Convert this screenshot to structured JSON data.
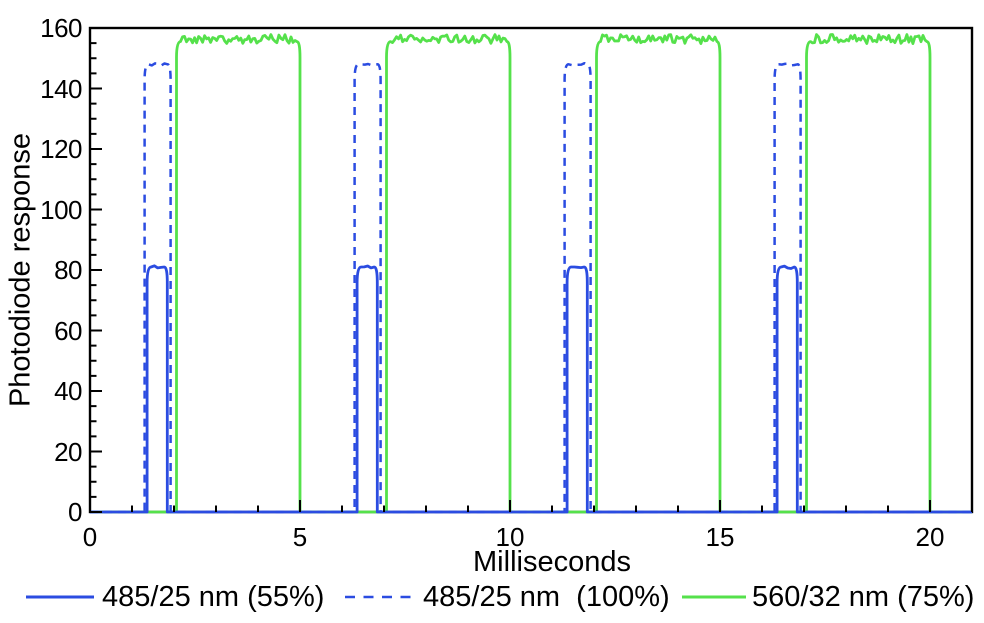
{
  "chart_data": {
    "type": "line",
    "title": "",
    "xlabel": "Milliseconds",
    "ylabel": "Photodiode response",
    "xlim": [
      0,
      21
    ],
    "ylim": [
      0,
      160
    ],
    "x_major_ticks": [
      0,
      5,
      10,
      15,
      20
    ],
    "x_minor_tick_step_ms": 1,
    "y_major_ticks": [
      0,
      20,
      40,
      60,
      80,
      100,
      120,
      140,
      160
    ],
    "y_minor_tick_step": 5,
    "grid": false,
    "legend_position": "below-chart",
    "axis_color": "#000000",
    "background_color": "#ffffff",
    "description": "Square pulse trains repeating every 5 ms; both 485 nm channels pulse briefly, then the 560 nm channel stays on for ~3 ms",
    "series": [
      {
        "name": "485/25 nm (55%)",
        "color": "#2b4ce1",
        "line_style": "solid",
        "baseline": 0,
        "amplitude": 81,
        "pulse_period_ms": 5,
        "pulses_ms": [
          [
            1.36,
            1.84
          ],
          [
            6.36,
            6.84
          ],
          [
            11.36,
            11.84
          ],
          [
            16.36,
            16.84
          ]
        ],
        "noise_amp": 0.5
      },
      {
        "name": "485/25 nm  (100%)",
        "color": "#2b4ce1",
        "line_style": "dashed",
        "baseline": 0,
        "amplitude": 148,
        "pulse_period_ms": 5,
        "pulses_ms": [
          [
            1.3,
            1.92
          ],
          [
            6.3,
            6.92
          ],
          [
            11.3,
            11.92
          ],
          [
            16.3,
            16.92
          ]
        ],
        "noise_amp": 0.4
      },
      {
        "name": "560/32 nm (75%)",
        "color": "#55e14b",
        "line_style": "solid",
        "baseline": 0,
        "amplitude": 155.5,
        "pulse_period_ms": 5,
        "pulses_ms": [
          [
            2.06,
            5.0
          ],
          [
            7.06,
            10.0
          ],
          [
            12.06,
            15.0
          ],
          [
            17.06,
            20.0
          ]
        ],
        "noise_amp": 1.5
      }
    ]
  }
}
